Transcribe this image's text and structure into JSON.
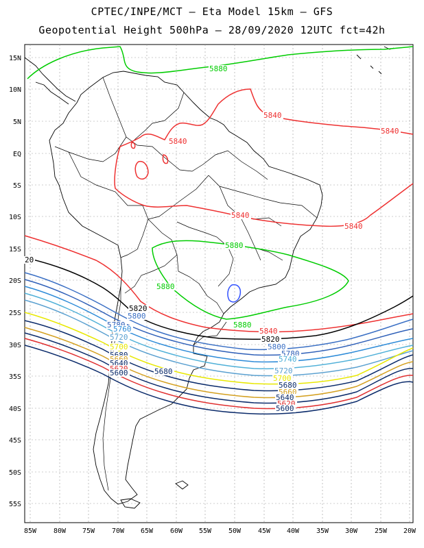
{
  "header": {
    "line1": "CPTEC/INPE/MCT –  Eta Model 15km – GFS",
    "line2": "Geopotential Height 500hPa – 28/09/2020 12UTC fct=42h"
  },
  "axes": {
    "lat_labels": [
      "15N",
      "10N",
      "5N",
      "EQ",
      "5S",
      "10S",
      "15S",
      "20S",
      "25S",
      "30S",
      "35S",
      "40S",
      "45S",
      "50S",
      "55S"
    ],
    "lon_labels": [
      "85W",
      "80W",
      "75W",
      "70W",
      "65W",
      "60W",
      "55W",
      "50W",
      "45W",
      "40W",
      "35W",
      "30W",
      "25W",
      "20W"
    ],
    "lat_range": [
      -58.5,
      16.5
    ],
    "lon_range": [
      -86,
      -20
    ]
  },
  "contour_colors": {
    "5880": "#00cc00",
    "5860": "#3050ff",
    "5840": "#ee3030",
    "5820": "#000000",
    "5800": "#3a6fc4",
    "5780": "#2e5fb8",
    "5760": "#2d8bd8",
    "5740": "#4fb0d8",
    "5720": "#5aa0d0",
    "5700": "#e8e800",
    "5680": "#0a2a6a",
    "5660": "#d4a020",
    "5640": "#0a2a6a",
    "5620": "#e03030",
    "5600": "#0a2a6a"
  },
  "contour_labels": [
    {
      "text": "5880",
      "color": "#00cc00"
    },
    {
      "text": "5880",
      "color": "#00cc00"
    },
    {
      "text": "5880",
      "color": "#00cc00"
    },
    {
      "text": "5880",
      "color": "#00cc00"
    },
    {
      "text": "5840",
      "color": "#ee3030"
    },
    {
      "text": "5840",
      "color": "#ee3030"
    },
    {
      "text": "5840",
      "color": "#ee3030"
    },
    {
      "text": "5840",
      "color": "#ee3030"
    },
    {
      "text": "5840",
      "color": "#ee3030"
    },
    {
      "text": "5840",
      "color": "#ee3030"
    },
    {
      "text": "5820",
      "color": "#000000"
    },
    {
      "text": "5820",
      "color": "#000000"
    },
    {
      "text": "20",
      "color": "#000000"
    },
    {
      "text": "5800",
      "color": "#3a6fc4"
    },
    {
      "text": "5800",
      "color": "#3a6fc4"
    },
    {
      "text": "5780",
      "color": "#2e5fb8"
    },
    {
      "text": "5780",
      "color": "#2e5fb8"
    },
    {
      "text": "5760",
      "color": "#2d8bd8"
    },
    {
      "text": "5740",
      "color": "#4fb0d8"
    },
    {
      "text": "5720",
      "color": "#5aa0d0"
    },
    {
      "text": "5720",
      "color": "#5aa0d0"
    },
    {
      "text": "5700",
      "color": "#e8e800"
    },
    {
      "text": "5700",
      "color": "#e8e800"
    },
    {
      "text": "5680",
      "color": "#0a2a6a"
    },
    {
      "text": "5680",
      "color": "#0a2a6a"
    },
    {
      "text": "5660",
      "color": "#d4a020"
    },
    {
      "text": "5660",
      "color": "#d4a020"
    },
    {
      "text": "5640",
      "color": "#0a2a6a"
    },
    {
      "text": "5640",
      "color": "#0a2a6a"
    },
    {
      "text": "5620",
      "color": "#e03030"
    },
    {
      "text": "5620",
      "color": "#e03030"
    },
    {
      "text": "5600",
      "color": "#0a2a6a"
    },
    {
      "text": "5600",
      "color": "#0a2a6a"
    },
    {
      "text": "5680",
      "color": "#0a2a6a"
    }
  ]
}
